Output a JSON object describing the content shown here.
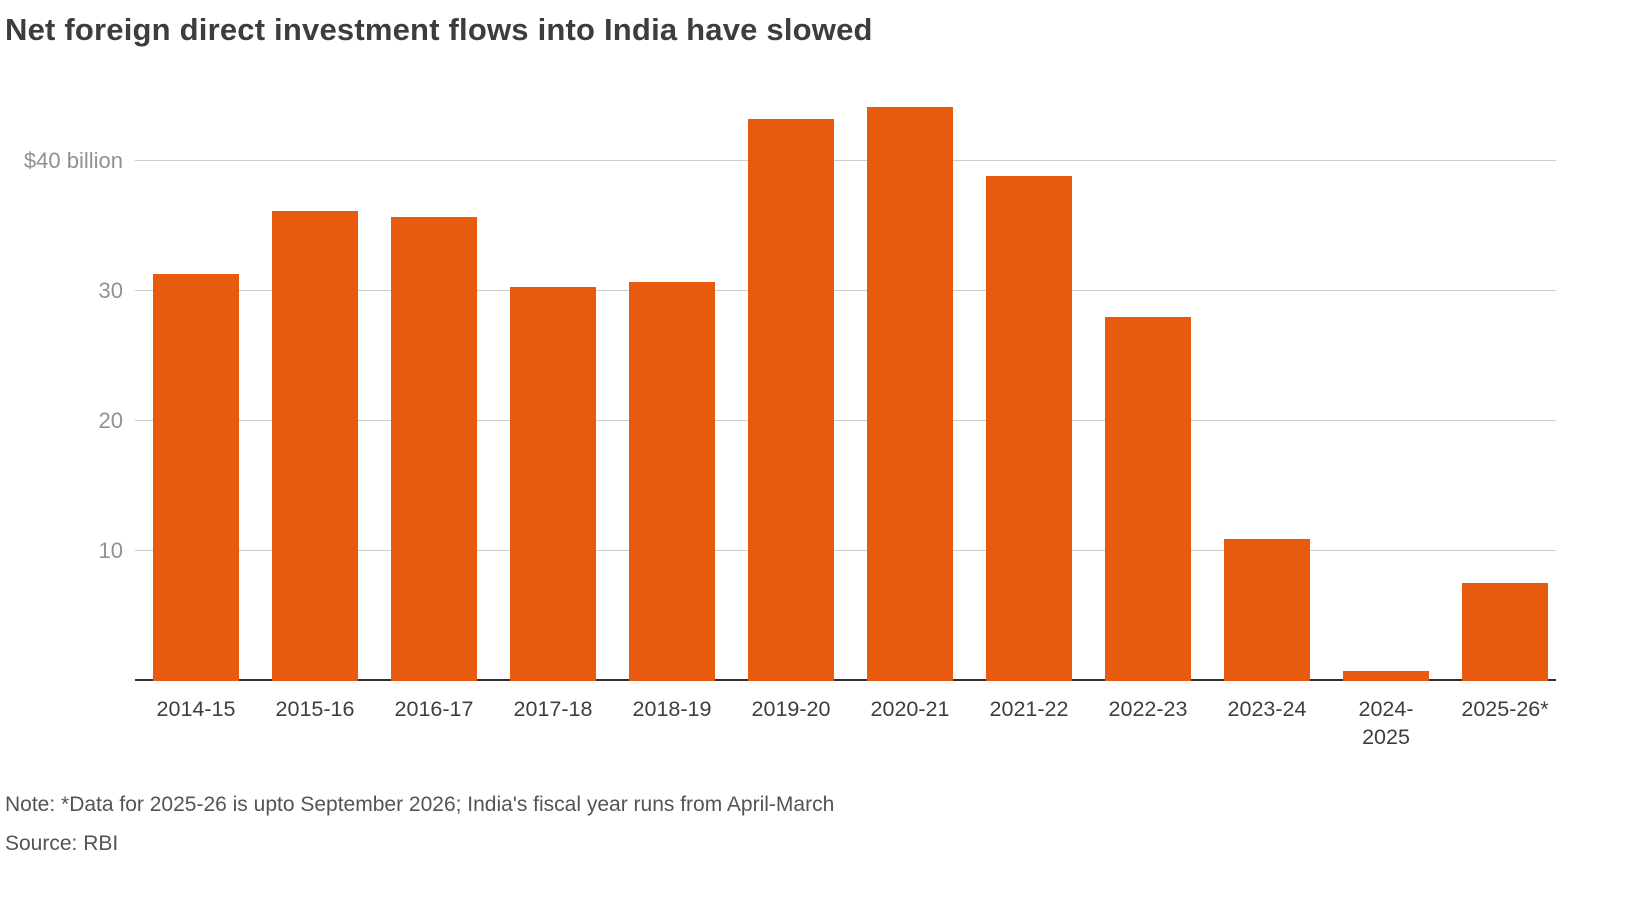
{
  "header": {
    "title": "Net foreign direct investment flows into India have slowed"
  },
  "chart_data": {
    "type": "bar",
    "title": "Net foreign direct investment flows into India have slowed",
    "categories": [
      "2014-15",
      "2015-16",
      "2016-17",
      "2017-18",
      "2018-19",
      "2019-20",
      "2020-21",
      "2021-22",
      "2022-23",
      "2023-24",
      "2024-2025",
      "2025-26*"
    ],
    "category_lines": [
      [
        "2014-15"
      ],
      [
        "2015-16"
      ],
      [
        "2016-17"
      ],
      [
        "2017-18"
      ],
      [
        "2018-19"
      ],
      [
        "2019-20"
      ],
      [
        "2020-21"
      ],
      [
        "2021-22"
      ],
      [
        "2022-23"
      ],
      [
        "2023-24"
      ],
      [
        "2024-",
        "2025"
      ],
      [
        "2025-26*"
      ]
    ],
    "values": [
      31.3,
      36.1,
      35.7,
      30.3,
      30.7,
      43.2,
      44.1,
      38.8,
      28.0,
      10.9,
      0.8,
      7.5
    ],
    "xlabel": "",
    "ylabel": "$ billion",
    "ylim": [
      0,
      46.5
    ],
    "y_ticks": [
      {
        "value": 10,
        "label": "10"
      },
      {
        "value": 20,
        "label": "20"
      },
      {
        "value": 30,
        "label": "30"
      },
      {
        "value": 40,
        "label": "$40 billion"
      }
    ],
    "grid": true,
    "legend": "none",
    "bar_color": "#e65b0e",
    "gridline_color": "#cccccc",
    "axis_line_color": "#2f2f2f"
  },
  "footer": {
    "note": "Note: *Data for 2025-26 is upto September 2026; India's fiscal year runs from April-March",
    "source": "Source: RBI"
  }
}
